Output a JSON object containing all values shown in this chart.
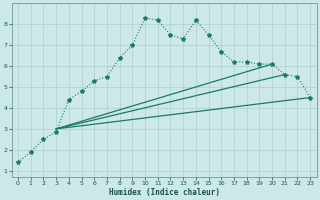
{
  "xlabel": "Humidex (Indice chaleur)",
  "bg_color": "#cce8e8",
  "grid_color": "#aacfcf",
  "line_color": "#1a7a6a",
  "xlim": [
    -0.5,
    23.5
  ],
  "ylim": [
    0.7,
    9.0
  ],
  "yticks": [
    1,
    2,
    3,
    4,
    5,
    6,
    7,
    8
  ],
  "xticks": [
    0,
    1,
    2,
    3,
    4,
    5,
    6,
    7,
    8,
    9,
    10,
    11,
    12,
    13,
    14,
    15,
    16,
    17,
    18,
    19,
    20,
    21,
    22,
    23
  ],
  "series": [
    {
      "x": [
        0,
        1,
        2,
        3,
        4,
        5,
        6,
        7,
        8,
        9,
        10,
        11,
        12,
        13,
        14,
        15,
        16,
        17,
        18,
        19,
        20,
        21,
        22,
        23
      ],
      "y": [
        1.4,
        1.9,
        2.5,
        2.85,
        4.4,
        4.8,
        5.3,
        5.5,
        6.4,
        7.0,
        8.3,
        8.2,
        7.5,
        7.3,
        8.2,
        7.5,
        6.7,
        6.2,
        6.2,
        6.1,
        6.1,
        5.6,
        5.5,
        4.5
      ],
      "style": "dotted",
      "marker": "*",
      "linewidth": 0.8,
      "markersize": 3.0
    },
    {
      "x": [
        3,
        23
      ],
      "y": [
        3.0,
        4.5
      ],
      "style": "solid",
      "marker": null,
      "linewidth": 0.9
    },
    {
      "x": [
        3,
        21
      ],
      "y": [
        3.0,
        5.6
      ],
      "style": "solid",
      "marker": null,
      "linewidth": 0.9
    },
    {
      "x": [
        3,
        20
      ],
      "y": [
        3.0,
        6.1
      ],
      "style": "solid",
      "marker": null,
      "linewidth": 0.9
    }
  ]
}
